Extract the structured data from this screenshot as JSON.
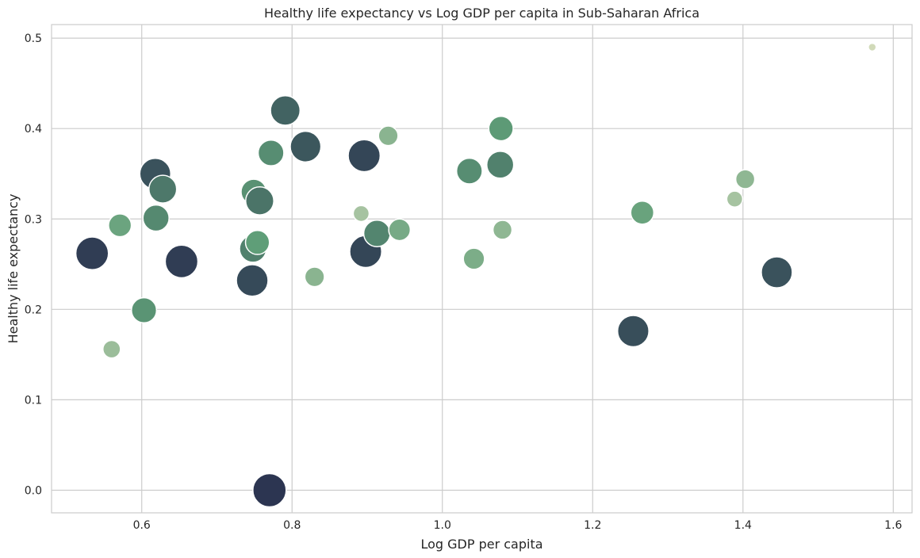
{
  "chart_data": {
    "type": "scatter",
    "title": "Healthy life expectancy vs Log GDP per capita in Sub-Saharan Africa",
    "xlabel": "Log GDP per capita",
    "ylabel": "Healthy life expectancy",
    "xlim": [
      0.48,
      1.625
    ],
    "ylim": [
      -0.025,
      0.515
    ],
    "xticks": [
      0.6,
      0.8,
      1.0,
      1.2,
      1.4,
      1.6
    ],
    "yticks": [
      0.0,
      0.1,
      0.2,
      0.3,
      0.4,
      0.5
    ],
    "xtick_labels": [
      "0.6",
      "0.8",
      "1.0",
      "1.2",
      "1.4",
      "1.6"
    ],
    "ytick_labels": [
      "0.0",
      "0.1",
      "0.2",
      "0.3",
      "0.4",
      "0.5"
    ],
    "grid": true,
    "size_scale": [
      0,
      1
    ],
    "color_light": "#d6dcbc",
    "color_mid": "#5f9e78",
    "color_dark": "#2c3551",
    "points": [
      {
        "x": 0.534,
        "y": 0.262,
        "size": 0.96
      },
      {
        "x": 0.56,
        "y": 0.156,
        "size": 0.25
      },
      {
        "x": 0.571,
        "y": 0.293,
        "size": 0.45
      },
      {
        "x": 0.603,
        "y": 0.199,
        "size": 0.55
      },
      {
        "x": 0.618,
        "y": 0.35,
        "size": 0.86
      },
      {
        "x": 0.619,
        "y": 0.301,
        "size": 0.6
      },
      {
        "x": 0.628,
        "y": 0.333,
        "size": 0.68
      },
      {
        "x": 0.653,
        "y": 0.253,
        "size": 0.96
      },
      {
        "x": 0.747,
        "y": 0.232,
        "size": 0.9
      },
      {
        "x": 0.748,
        "y": 0.267,
        "size": 0.64
      },
      {
        "x": 0.749,
        "y": 0.33,
        "size": 0.56
      },
      {
        "x": 0.754,
        "y": 0.274,
        "size": 0.5
      },
      {
        "x": 0.757,
        "y": 0.32,
        "size": 0.7
      },
      {
        "x": 0.77,
        "y": 0.0,
        "size": 1.0
      },
      {
        "x": 0.772,
        "y": 0.373,
        "size": 0.58
      },
      {
        "x": 0.791,
        "y": 0.42,
        "size": 0.78
      },
      {
        "x": 0.818,
        "y": 0.38,
        "size": 0.84
      },
      {
        "x": 0.83,
        "y": 0.236,
        "size": 0.32
      },
      {
        "x": 0.892,
        "y": 0.306,
        "size": 0.2
      },
      {
        "x": 0.896,
        "y": 0.37,
        "size": 0.92
      },
      {
        "x": 0.898,
        "y": 0.264,
        "size": 0.92
      },
      {
        "x": 0.913,
        "y": 0.284,
        "size": 0.62
      },
      {
        "x": 0.928,
        "y": 0.392,
        "size": 0.32
      },
      {
        "x": 0.943,
        "y": 0.288,
        "size": 0.4
      },
      {
        "x": 1.036,
        "y": 0.353,
        "size": 0.58
      },
      {
        "x": 1.042,
        "y": 0.256,
        "size": 0.38
      },
      {
        "x": 1.077,
        "y": 0.36,
        "size": 0.64
      },
      {
        "x": 1.078,
        "y": 0.4,
        "size": 0.52
      },
      {
        "x": 1.08,
        "y": 0.288,
        "size": 0.3
      },
      {
        "x": 1.254,
        "y": 0.176,
        "size": 0.88
      },
      {
        "x": 1.266,
        "y": 0.307,
        "size": 0.46
      },
      {
        "x": 1.389,
        "y": 0.322,
        "size": 0.2
      },
      {
        "x": 1.403,
        "y": 0.344,
        "size": 0.3
      },
      {
        "x": 1.445,
        "y": 0.241,
        "size": 0.86
      },
      {
        "x": 1.572,
        "y": 0.49,
        "size": 0.02
      }
    ]
  }
}
